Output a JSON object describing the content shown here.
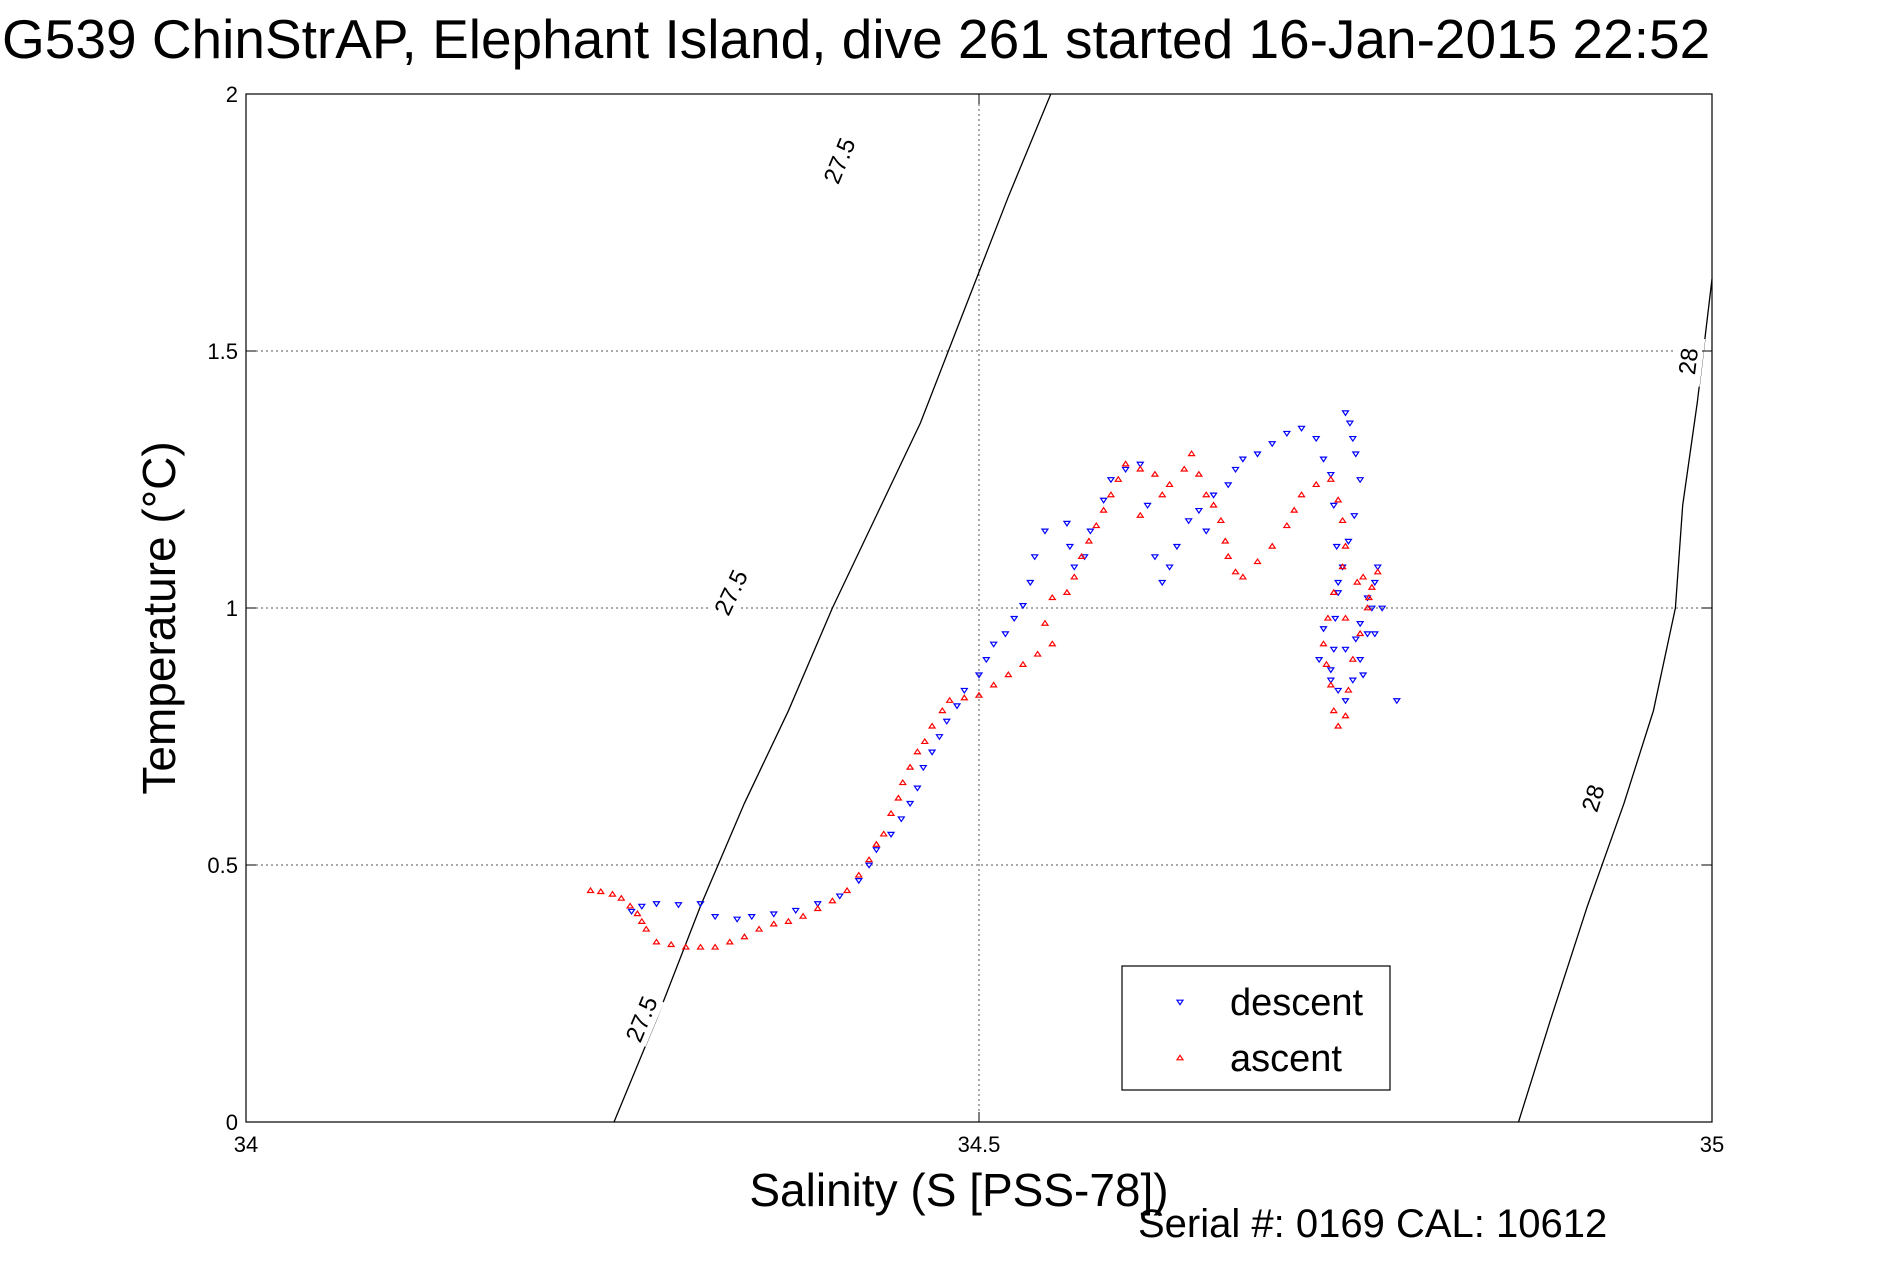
{
  "title": "G539 ChinStrAP, Elephant Island, dive 261 started 16-Jan-2015 22:52",
  "footer": "Serial #: 0169 CAL: 10612",
  "chart_data": {
    "type": "scatter",
    "xlabel": "Salinity (S [PSS-78])",
    "ylabel": "Temperature (°C)",
    "xlim": [
      34,
      35
    ],
    "ylim": [
      0,
      2
    ],
    "x_ticks": [
      34,
      34.5,
      35
    ],
    "x_tick_labels": [
      "34",
      "34.5",
      "35"
    ],
    "y_ticks": [
      0,
      0.5,
      1,
      1.5,
      2
    ],
    "y_tick_labels": [
      "0",
      "0.5",
      "1",
      "1.5",
      "2"
    ],
    "grid": true,
    "legend_position": "bottom-right",
    "density_contours": [
      {
        "label": "27.5",
        "color": "#000000",
        "points": [
          [
            34.251,
            0
          ],
          [
            34.28,
            0.2
          ],
          [
            34.31,
            0.42
          ],
          [
            34.34,
            0.62
          ],
          [
            34.37,
            0.8
          ],
          [
            34.4,
            1.0
          ],
          [
            34.43,
            1.18
          ],
          [
            34.46,
            1.36
          ],
          [
            34.49,
            1.58
          ],
          [
            34.52,
            1.8
          ],
          [
            34.549,
            2.0
          ]
        ],
        "label_positions": [
          [
            34.27,
            0.2
          ],
          [
            34.331,
            1.03
          ],
          [
            34.405,
            1.87
          ]
        ]
      },
      {
        "label": "28",
        "color": "#000000",
        "points": [
          [
            34.868,
            0
          ],
          [
            34.89,
            0.2
          ],
          [
            34.915,
            0.42
          ],
          [
            34.94,
            0.62
          ],
          [
            34.96,
            0.8
          ],
          [
            34.975,
            1.0
          ],
          [
            34.98,
            1.2
          ],
          [
            34.99,
            1.4
          ],
          [
            35.0,
            1.64
          ]
        ],
        "label_positions": [
          [
            34.919,
            0.63
          ],
          [
            34.984,
            1.48
          ]
        ]
      }
    ],
    "series": [
      {
        "name": "descent",
        "marker": "triangle-down",
        "color": "#0000ff",
        "points": [
          [
            34.263,
            0.41
          ],
          [
            34.27,
            0.42
          ],
          [
            34.28,
            0.425
          ],
          [
            34.295,
            0.423
          ],
          [
            34.31,
            0.425
          ],
          [
            34.32,
            0.4
          ],
          [
            34.335,
            0.395
          ],
          [
            34.345,
            0.4
          ],
          [
            34.36,
            0.405
          ],
          [
            34.375,
            0.412
          ],
          [
            34.39,
            0.425
          ],
          [
            34.405,
            0.44
          ],
          [
            34.418,
            0.47
          ],
          [
            34.425,
            0.5
          ],
          [
            34.43,
            0.53
          ],
          [
            34.44,
            0.56
          ],
          [
            34.447,
            0.59
          ],
          [
            34.453,
            0.62
          ],
          [
            34.458,
            0.65
          ],
          [
            34.462,
            0.69
          ],
          [
            34.468,
            0.72
          ],
          [
            34.473,
            0.75
          ],
          [
            34.478,
            0.78
          ],
          [
            34.485,
            0.81
          ],
          [
            34.49,
            0.84
          ],
          [
            34.5,
            0.87
          ],
          [
            34.505,
            0.9
          ],
          [
            34.51,
            0.93
          ],
          [
            34.518,
            0.95
          ],
          [
            34.524,
            0.98
          ],
          [
            34.53,
            1.005
          ],
          [
            34.535,
            1.05
          ],
          [
            34.538,
            1.1
          ],
          [
            34.545,
            1.15
          ],
          [
            34.56,
            1.165
          ],
          [
            34.562,
            1.12
          ],
          [
            34.565,
            1.08
          ],
          [
            34.572,
            1.1
          ],
          [
            34.576,
            1.15
          ],
          [
            34.585,
            1.21
          ],
          [
            34.59,
            1.25
          ],
          [
            34.6,
            1.27
          ],
          [
            34.61,
            1.28
          ],
          [
            34.615,
            1.2
          ],
          [
            34.62,
            1.1
          ],
          [
            34.625,
            1.05
          ],
          [
            34.63,
            1.08
          ],
          [
            34.635,
            1.12
          ],
          [
            34.643,
            1.17
          ],
          [
            34.65,
            1.19
          ],
          [
            34.655,
            1.15
          ],
          [
            34.66,
            1.22
          ],
          [
            34.67,
            1.24
          ],
          [
            34.675,
            1.27
          ],
          [
            34.68,
            1.29
          ],
          [
            34.69,
            1.3
          ],
          [
            34.7,
            1.32
          ],
          [
            34.71,
            1.34
          ],
          [
            34.72,
            1.35
          ],
          [
            34.73,
            1.33
          ],
          [
            34.735,
            1.29
          ],
          [
            34.74,
            1.26
          ],
          [
            34.742,
            1.2
          ],
          [
            34.744,
            1.12
          ],
          [
            34.75,
            1.38
          ],
          [
            34.753,
            1.36
          ],
          [
            34.755,
            1.33
          ],
          [
            34.757,
            1.3
          ],
          [
            34.76,
            1.25
          ],
          [
            34.756,
            1.18
          ],
          [
            34.752,
            1.13
          ],
          [
            34.748,
            1.08
          ],
          [
            34.745,
            1.03
          ],
          [
            34.743,
            0.98
          ],
          [
            34.742,
            0.92
          ],
          [
            34.74,
            0.88
          ],
          [
            34.745,
            0.84
          ],
          [
            34.75,
            0.82
          ],
          [
            34.755,
            0.86
          ],
          [
            34.76,
            0.9
          ],
          [
            34.765,
            0.95
          ],
          [
            34.768,
            1.0
          ],
          [
            34.77,
            1.05
          ],
          [
            34.772,
            1.08
          ],
          [
            34.765,
            1.02
          ],
          [
            34.76,
            0.97
          ],
          [
            34.75,
            0.92
          ],
          [
            34.745,
            1.05
          ],
          [
            34.77,
            0.95
          ],
          [
            34.775,
            1.0
          ],
          [
            34.732,
            0.9
          ],
          [
            34.74,
            0.86
          ],
          [
            34.735,
            0.96
          ],
          [
            34.757,
            0.94
          ],
          [
            34.762,
            0.87
          ],
          [
            34.785,
            0.82
          ]
        ]
      },
      {
        "name": "ascent",
        "marker": "triangle-up",
        "color": "#ff0000",
        "points": [
          [
            34.235,
            0.45
          ],
          [
            34.242,
            0.448
          ],
          [
            34.25,
            0.443
          ],
          [
            34.256,
            0.435
          ],
          [
            34.262,
            0.42
          ],
          [
            34.267,
            0.405
          ],
          [
            34.27,
            0.39
          ],
          [
            34.273,
            0.375
          ],
          [
            34.28,
            0.35
          ],
          [
            34.29,
            0.345
          ],
          [
            34.3,
            0.34
          ],
          [
            34.31,
            0.34
          ],
          [
            34.32,
            0.34
          ],
          [
            34.33,
            0.35
          ],
          [
            34.34,
            0.36
          ],
          [
            34.35,
            0.375
          ],
          [
            34.36,
            0.385
          ],
          [
            34.37,
            0.39
          ],
          [
            34.38,
            0.4
          ],
          [
            34.39,
            0.415
          ],
          [
            34.4,
            0.43
          ],
          [
            34.41,
            0.45
          ],
          [
            34.418,
            0.48
          ],
          [
            34.425,
            0.51
          ],
          [
            34.43,
            0.54
          ],
          [
            34.435,
            0.56
          ],
          [
            34.44,
            0.6
          ],
          [
            34.445,
            0.63
          ],
          [
            34.448,
            0.66
          ],
          [
            34.453,
            0.69
          ],
          [
            34.458,
            0.72
          ],
          [
            34.463,
            0.74
          ],
          [
            34.468,
            0.77
          ],
          [
            34.475,
            0.8
          ],
          [
            34.48,
            0.82
          ],
          [
            34.49,
            0.825
          ],
          [
            34.5,
            0.83
          ],
          [
            34.51,
            0.85
          ],
          [
            34.52,
            0.87
          ],
          [
            34.53,
            0.89
          ],
          [
            34.54,
            0.91
          ],
          [
            34.55,
            0.93
          ],
          [
            34.545,
            0.97
          ],
          [
            34.55,
            1.02
          ],
          [
            34.56,
            1.03
          ],
          [
            34.565,
            1.06
          ],
          [
            34.57,
            1.1
          ],
          [
            34.575,
            1.13
          ],
          [
            34.58,
            1.16
          ],
          [
            34.585,
            1.19
          ],
          [
            34.59,
            1.22
          ],
          [
            34.595,
            1.25
          ],
          [
            34.6,
            1.28
          ],
          [
            34.61,
            1.27
          ],
          [
            34.62,
            1.26
          ],
          [
            34.63,
            1.24
          ],
          [
            34.64,
            1.27
          ],
          [
            34.645,
            1.3
          ],
          [
            34.65,
            1.26
          ],
          [
            34.655,
            1.22
          ],
          [
            34.66,
            1.2
          ],
          [
            34.665,
            1.17
          ],
          [
            34.668,
            1.13
          ],
          [
            34.67,
            1.1
          ],
          [
            34.675,
            1.07
          ],
          [
            34.68,
            1.06
          ],
          [
            34.69,
            1.09
          ],
          [
            34.7,
            1.12
          ],
          [
            34.71,
            1.16
          ],
          [
            34.715,
            1.19
          ],
          [
            34.72,
            1.22
          ],
          [
            34.73,
            1.24
          ],
          [
            34.74,
            1.25
          ],
          [
            34.745,
            1.21
          ],
          [
            34.748,
            1.17
          ],
          [
            34.75,
            1.12
          ],
          [
            34.748,
            1.08
          ],
          [
            34.742,
            1.03
          ],
          [
            34.738,
            0.98
          ],
          [
            34.735,
            0.93
          ],
          [
            34.737,
            0.89
          ],
          [
            34.74,
            0.85
          ],
          [
            34.742,
            0.8
          ],
          [
            34.745,
            0.77
          ],
          [
            34.75,
            0.79
          ],
          [
            34.752,
            0.84
          ],
          [
            34.755,
            0.9
          ],
          [
            34.76,
            0.95
          ],
          [
            34.765,
            1.0
          ],
          [
            34.768,
            1.04
          ],
          [
            34.772,
            1.07
          ],
          [
            34.766,
            1.02
          ],
          [
            34.758,
            1.05
          ],
          [
            34.75,
            0.98
          ],
          [
            34.762,
            1.06
          ],
          [
            34.61,
            1.18
          ],
          [
            34.625,
            1.22
          ]
        ]
      }
    ]
  }
}
